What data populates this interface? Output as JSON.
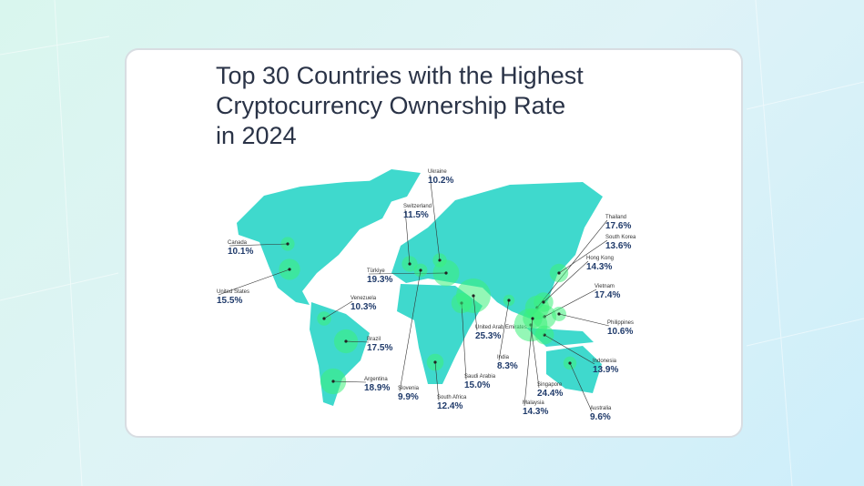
{
  "title_lines": [
    "Top 30 Countries with the Highest",
    "Cryptocurrency Ownership Rate",
    "in 2024"
  ],
  "countries": [
    {
      "name": "Ukraine",
      "value": 10.2,
      "value_label": "10.2%"
    },
    {
      "name": "Switzerland",
      "value": 11.5,
      "value_label": "11.5%"
    },
    {
      "name": "Canada",
      "value": 10.1,
      "value_label": "10.1%"
    },
    {
      "name": "United States",
      "value": 15.5,
      "value_label": "15.5%"
    },
    {
      "name": "Türkiye",
      "value": 19.3,
      "value_label": "19.3%"
    },
    {
      "name": "Venezuela",
      "value": 10.3,
      "value_label": "10.3%"
    },
    {
      "name": "Brazil",
      "value": 17.5,
      "value_label": "17.5%"
    },
    {
      "name": "Argentina",
      "value": 18.9,
      "value_label": "18.9%"
    },
    {
      "name": "Slovenia",
      "value": 9.9,
      "value_label": "9.9%"
    },
    {
      "name": "South Africa",
      "value": 12.4,
      "value_label": "12.4%"
    },
    {
      "name": "Saudi Arabia",
      "value": 15.0,
      "value_label": "15.0%"
    },
    {
      "name": "United Arab Emirates",
      "value": 25.3,
      "value_label": "25.3%"
    },
    {
      "name": "India",
      "value": 8.3,
      "value_label": "8.3%"
    },
    {
      "name": "Thailand",
      "value": 17.6,
      "value_label": "17.6%"
    },
    {
      "name": "South Korea",
      "value": 13.6,
      "value_label": "13.6%"
    },
    {
      "name": "Hong Kong",
      "value": 14.3,
      "value_label": "14.3%"
    },
    {
      "name": "Vietnam",
      "value": 17.4,
      "value_label": "17.4%"
    },
    {
      "name": "Philippines",
      "value": 10.6,
      "value_label": "10.6%"
    },
    {
      "name": "Indonesia",
      "value": 13.9,
      "value_label": "13.9%"
    },
    {
      "name": "Singapore",
      "value": 24.4,
      "value_label": "24.4%"
    },
    {
      "name": "Malaysia",
      "value": 14.3,
      "value_label": "14.3%"
    },
    {
      "name": "Australia",
      "value": 9.6,
      "value_label": "9.6%"
    }
  ]
}
